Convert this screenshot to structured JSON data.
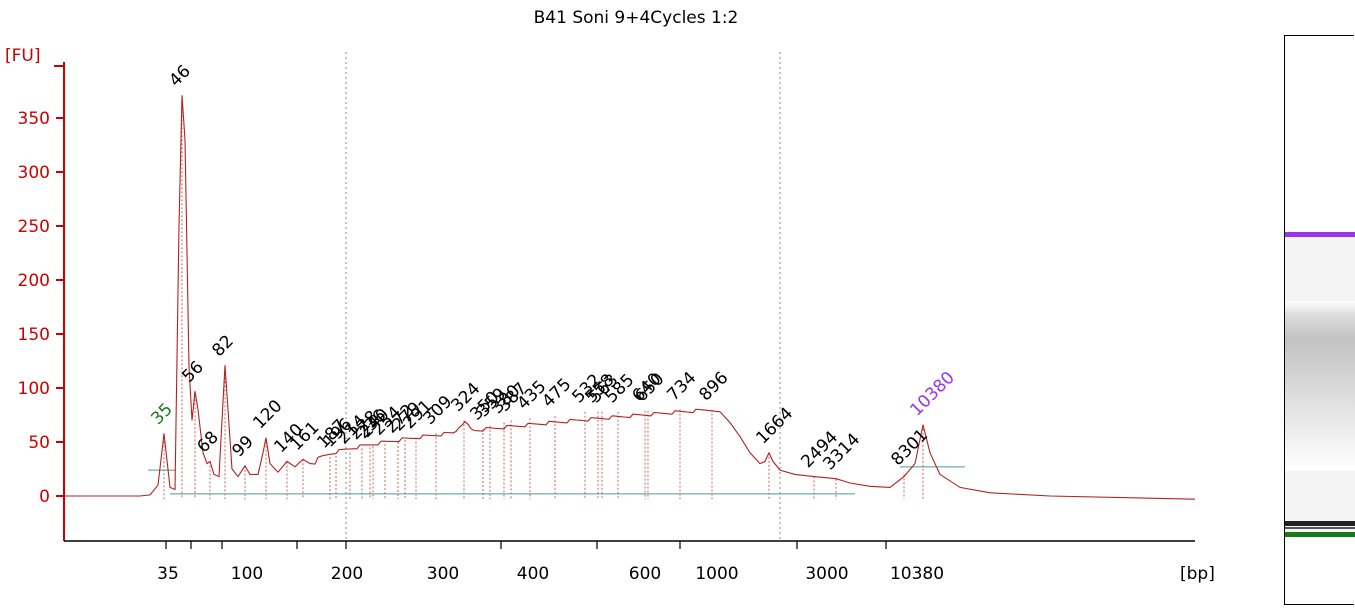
{
  "chart_data": {
    "type": "line",
    "title": "B41 Soni 9+4Cycles 1:2",
    "ylabel": "[FU]",
    "xlabel": "[bp]",
    "ylim": [
      -40,
      385
    ],
    "yticks": [
      "0",
      "50",
      "100",
      "150",
      "200",
      "250",
      "300",
      "350"
    ],
    "xticks": [
      "35",
      "100",
      "200",
      "300",
      "400",
      "600",
      "1000",
      "3000",
      "10380"
    ],
    "lower_marker": {
      "label": "35",
      "color": "#1a7a1a"
    },
    "upper_marker": {
      "label": "10380",
      "color": "#9933ee"
    },
    "peaks": [
      {
        "label": "35",
        "value": 58,
        "color": "#1a7a1a"
      },
      {
        "label": "46",
        "value": 371
      },
      {
        "label": "56",
        "value": 97
      },
      {
        "label": "68",
        "value": 32
      },
      {
        "label": "82",
        "value": 121
      },
      {
        "label": "99",
        "value": 28
      },
      {
        "label": "120",
        "value": 54
      },
      {
        "label": "140",
        "value": 32
      },
      {
        "label": "161",
        "value": 34
      },
      {
        "label": "187",
        "value": 36
      },
      {
        "label": "196",
        "value": 37
      },
      {
        "label": "214",
        "value": 40
      },
      {
        "label": "228",
        "value": 44
      },
      {
        "label": "236",
        "value": 45
      },
      {
        "label": "240",
        "value": 46
      },
      {
        "label": "254",
        "value": 48
      },
      {
        "label": "272",
        "value": 50
      },
      {
        "label": "279",
        "value": 52
      },
      {
        "label": "291",
        "value": 54
      },
      {
        "label": "309",
        "value": 58
      },
      {
        "label": "324",
        "value": 70
      },
      {
        "label": "350",
        "value": 62
      },
      {
        "label": "359",
        "value": 65
      },
      {
        "label": "380",
        "value": 68
      },
      {
        "label": "387",
        "value": 70
      },
      {
        "label": "435",
        "value": 72
      },
      {
        "label": "475",
        "value": 74
      },
      {
        "label": "532",
        "value": 78
      },
      {
        "label": "558",
        "value": 78
      },
      {
        "label": "563",
        "value": 78
      },
      {
        "label": "585",
        "value": 78
      },
      {
        "label": "640",
        "value": 79
      },
      {
        "label": "650",
        "value": 79
      },
      {
        "label": "734",
        "value": 80
      },
      {
        "label": "896",
        "value": 80
      },
      {
        "label": "1664",
        "value": 40
      },
      {
        "label": "2494",
        "value": 18
      },
      {
        "label": "3314",
        "value": 16
      },
      {
        "label": "8301",
        "value": 20
      },
      {
        "label": "10380",
        "value": 66,
        "color": "#9933ee"
      }
    ],
    "grid": false,
    "legend": "none"
  }
}
